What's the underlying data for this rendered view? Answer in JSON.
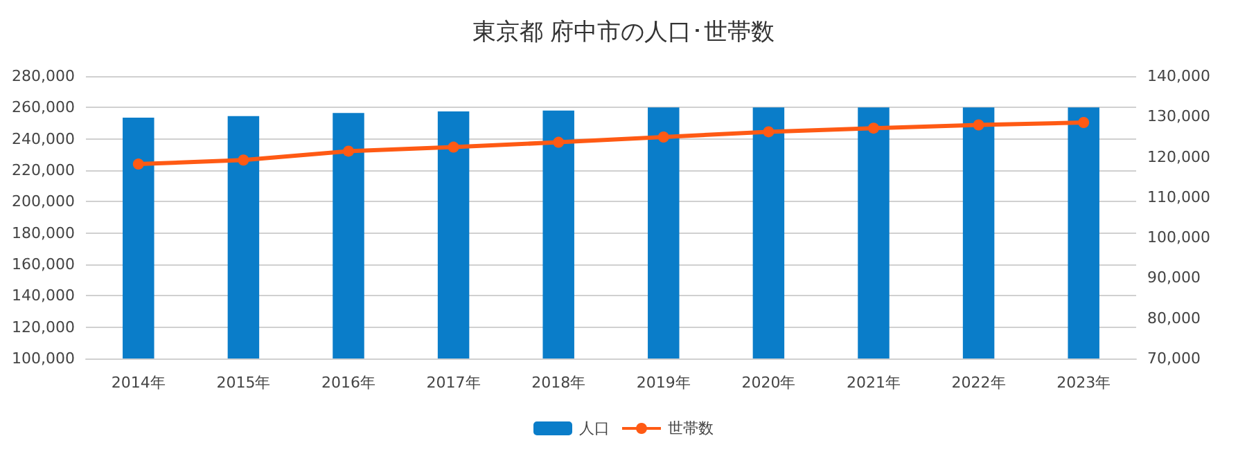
{
  "chart_data": {
    "type": "bar",
    "title": "東京都 府中市の人口･世帯数",
    "categories": [
      "2014年",
      "2015年",
      "2016年",
      "2017年",
      "2018年",
      "2019年",
      "2020年",
      "2021年",
      "2022年",
      "2023年"
    ],
    "series": [
      {
        "name": "人口",
        "color": "#0a7dc9",
        "values": [
          253500,
          254500,
          256500,
          257500,
          258000,
          260000,
          260000,
          260000,
          260000,
          260000
        ]
      },
      {
        "name": "世帯数",
        "type": "line",
        "axis": "y2",
        "color": "#ff5a14",
        "values": [
          118200,
          119200,
          121400,
          122400,
          123600,
          124900,
          126200,
          127100,
          127900,
          128500
        ]
      }
    ],
    "ylim": [
      100000,
      280000
    ],
    "yticks": [
      {
        "value": 100000,
        "label": "100,000"
      },
      {
        "value": 120000,
        "label": "120,000"
      },
      {
        "value": 140000,
        "label": "140,000"
      },
      {
        "value": 160000,
        "label": "160,000"
      },
      {
        "value": 180000,
        "label": "180,000"
      },
      {
        "value": 200000,
        "label": "200,000"
      },
      {
        "value": 220000,
        "label": "220,000"
      },
      {
        "value": 240000,
        "label": "240,000"
      },
      {
        "value": 260000,
        "label": "260,000"
      },
      {
        "value": 280000,
        "label": "280,000"
      }
    ],
    "y2lim": [
      70000,
      140000
    ],
    "y2ticks": [
      {
        "value": 70000,
        "label": "70,000"
      },
      {
        "value": 80000,
        "label": "80,000"
      },
      {
        "value": 90000,
        "label": "90,000"
      },
      {
        "value": 100000,
        "label": "100,000"
      },
      {
        "value": 110000,
        "label": "110,000"
      },
      {
        "value": 120000,
        "label": "120,000"
      },
      {
        "value": 130000,
        "label": "130,000"
      },
      {
        "value": 140000,
        "label": "140,000"
      }
    ],
    "grid": "y",
    "legend": "bottom",
    "marker": "circle"
  }
}
